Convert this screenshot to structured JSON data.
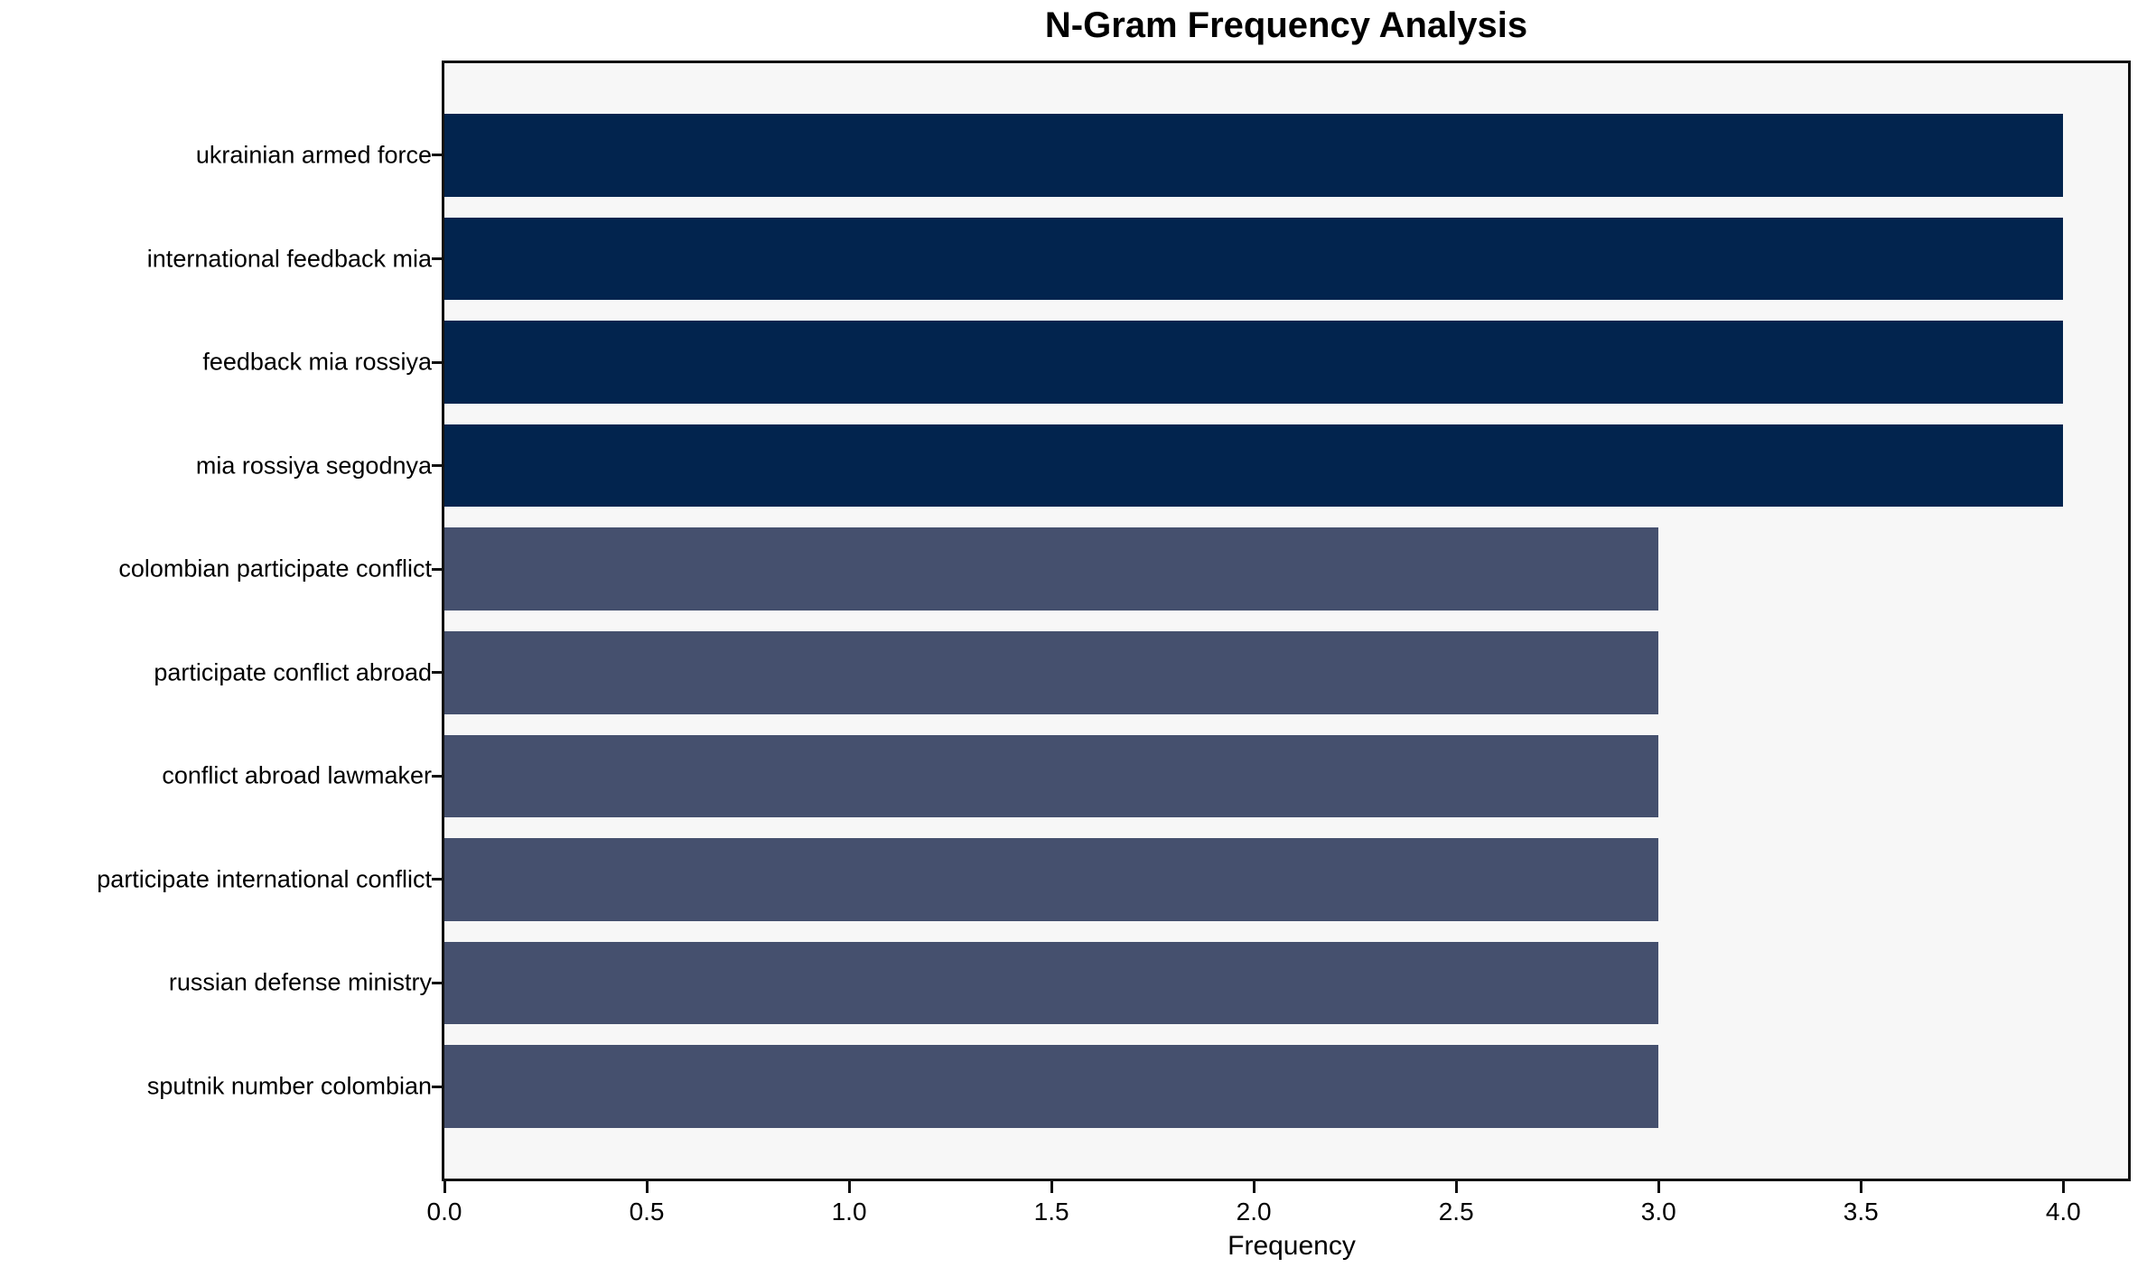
{
  "chart_data": {
    "type": "bar",
    "orientation": "horizontal",
    "title": "N-Gram Frequency Analysis",
    "xlabel": "Frequency",
    "ylabel": "",
    "grid": false,
    "legend": null,
    "plot_background": "#f7f7f7",
    "spine_color": "#111111",
    "xlim": [
      0,
      4.16
    ],
    "xticks": [
      0.0,
      0.5,
      1.0,
      1.5,
      2.0,
      2.5,
      3.0,
      3.5,
      4.0
    ],
    "categories": [
      "ukrainian armed force",
      "international feedback mia",
      "feedback mia rossiya",
      "mia rossiya segodnya",
      "colombian participate conflict",
      "participate conflict abroad",
      "conflict abroad lawmaker",
      "participate international conflict",
      "russian defense ministry",
      "sputnik number colombian"
    ],
    "values": [
      4,
      4,
      4,
      4,
      3,
      3,
      3,
      3,
      3,
      3
    ],
    "bar_colors": [
      "#02244e",
      "#02244e",
      "#02244e",
      "#02244e",
      "#45506e",
      "#45506e",
      "#45506e",
      "#45506e",
      "#45506e",
      "#45506e"
    ]
  }
}
